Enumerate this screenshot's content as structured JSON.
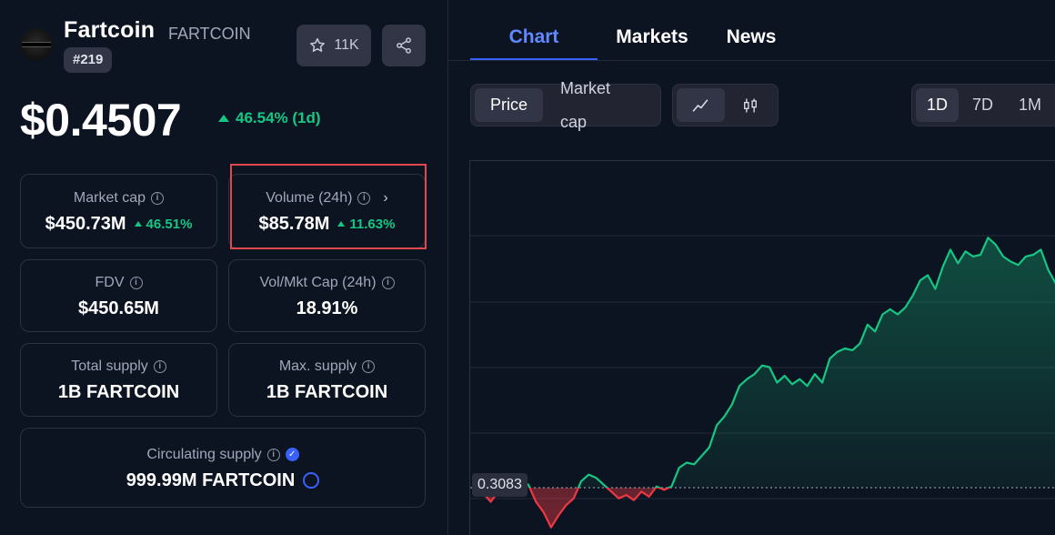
{
  "coin": {
    "name": "Fartcoin",
    "symbol": "FARTCOIN",
    "rank": "#219",
    "watchlist_count": "11K",
    "price": "$0.4507",
    "price_change": "46.54% (1d)",
    "logo_icon": "fartcoin-logo"
  },
  "stats": {
    "market_cap": {
      "label": "Market cap",
      "value": "$450.73M",
      "change": "46.51%"
    },
    "volume": {
      "label": "Volume (24h)",
      "value": "$85.78M",
      "change": "11.63%"
    },
    "fdv": {
      "label": "FDV",
      "value": "$450.65M"
    },
    "vol_mkt_cap": {
      "label": "Vol/Mkt Cap (24h)",
      "value": "18.91%"
    },
    "total_supply": {
      "label": "Total supply",
      "value": "1B FARTCOIN"
    },
    "max_supply": {
      "label": "Max. supply",
      "value": "1B FARTCOIN"
    },
    "circulating_supply": {
      "label": "Circulating supply",
      "value": "999.99M FARTCOIN"
    }
  },
  "tabs": [
    {
      "label": "Chart",
      "active": true
    },
    {
      "label": "Markets",
      "active": false
    },
    {
      "label": "News",
      "active": false
    }
  ],
  "chart_controls": {
    "metric": [
      "Price",
      "Market cap"
    ],
    "metric_selected": "Price",
    "chart_types": [
      "line-chart-icon",
      "candlestick-icon"
    ],
    "ranges": [
      "1D",
      "7D",
      "1M"
    ],
    "range_selected": "1D"
  },
  "chart_data": {
    "type": "area",
    "baseline": 0.3083,
    "baseline_label": "0.3083",
    "ylim": [
      0.28,
      0.5
    ],
    "values": [
      0.315,
      0.305,
      0.3,
      0.306,
      0.313,
      0.315,
      0.312,
      0.31,
      0.3,
      0.294,
      0.285,
      0.292,
      0.298,
      0.302,
      0.312,
      0.316,
      0.314,
      0.31,
      0.306,
      0.302,
      0.304,
      0.301,
      0.306,
      0.303,
      0.309,
      0.307,
      0.309,
      0.32,
      0.323,
      0.322,
      0.327,
      0.332,
      0.345,
      0.35,
      0.357,
      0.368,
      0.372,
      0.375,
      0.38,
      0.379,
      0.37,
      0.374,
      0.369,
      0.372,
      0.368,
      0.375,
      0.37,
      0.384,
      0.388,
      0.39,
      0.389,
      0.393,
      0.404,
      0.4,
      0.41,
      0.413,
      0.41,
      0.414,
      0.421,
      0.43,
      0.433,
      0.425,
      0.438,
      0.448,
      0.44,
      0.447,
      0.444,
      0.445,
      0.455,
      0.451,
      0.444,
      0.441,
      0.439,
      0.444,
      0.445,
      0.448,
      0.436,
      0.428
    ],
    "up_color": "#16c784",
    "down_color": "#ea3943"
  }
}
